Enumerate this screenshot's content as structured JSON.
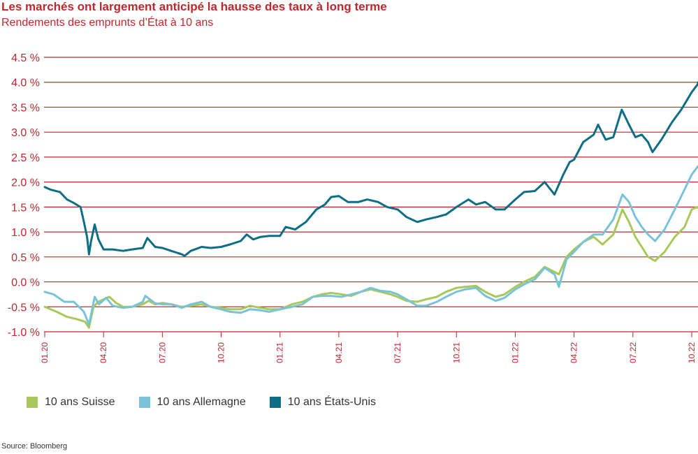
{
  "chart_data": {
    "type": "line",
    "title": "Les marchés ont largement anticipé la hausse des taux à long terme",
    "subtitle": "Rendements des emprunts d’État à 10 ans",
    "xlabel": "",
    "ylabel": "",
    "ylim": [
      -1.0,
      4.5
    ],
    "grid": true,
    "legend_position": "bottom",
    "yticks": [
      4.5,
      4.0,
      3.5,
      3.0,
      2.5,
      2.0,
      1.5,
      1.0,
      0.5,
      0.0,
      -0.5,
      -1.0
    ],
    "ytick_labels": [
      "4.5 %",
      "4.0 %",
      "3.5 %",
      "3.0 %",
      "2.5 %",
      "2.0 %",
      "1.5 %",
      "1.0 %",
      "0.5 %",
      "0.0 %",
      "-0.5 %",
      "-1.0 %"
    ],
    "xticks": [
      "01.20",
      "04.20",
      "07.20",
      "10.20",
      "01.21",
      "04.21",
      "07.21",
      "10.21",
      "01.22",
      "04.22",
      "07.22",
      "10.22"
    ],
    "series": [
      {
        "name": "10 ans Suisse",
        "color": "#a9c85a",
        "points": [
          [
            "2020-01-01",
            -0.5
          ],
          [
            "2020-01-20",
            -0.6
          ],
          [
            "2020-02-05",
            -0.7
          ],
          [
            "2020-02-20",
            -0.75
          ],
          [
            "2020-03-03",
            -0.8
          ],
          [
            "2020-03-09",
            -0.92
          ],
          [
            "2020-03-16",
            -0.5
          ],
          [
            "2020-03-24",
            -0.4
          ],
          [
            "2020-04-01",
            -0.35
          ],
          [
            "2020-04-10",
            -0.3
          ],
          [
            "2020-04-20",
            -0.42
          ],
          [
            "2020-05-01",
            -0.5
          ],
          [
            "2020-05-15",
            -0.5
          ],
          [
            "2020-06-01",
            -0.45
          ],
          [
            "2020-06-10",
            -0.38
          ],
          [
            "2020-06-20",
            -0.45
          ],
          [
            "2020-07-01",
            -0.42
          ],
          [
            "2020-07-15",
            -0.45
          ],
          [
            "2020-08-01",
            -0.5
          ],
          [
            "2020-08-15",
            -0.48
          ],
          [
            "2020-09-01",
            -0.45
          ],
          [
            "2020-09-15",
            -0.5
          ],
          [
            "2020-10-01",
            -0.52
          ],
          [
            "2020-10-15",
            -0.55
          ],
          [
            "2020-11-01",
            -0.55
          ],
          [
            "2020-11-15",
            -0.48
          ],
          [
            "2020-12-01",
            -0.52
          ],
          [
            "2020-12-15",
            -0.55
          ],
          [
            "2021-01-01",
            -0.55
          ],
          [
            "2021-01-20",
            -0.45
          ],
          [
            "2021-02-05",
            -0.4
          ],
          [
            "2021-02-20",
            -0.3
          ],
          [
            "2021-03-05",
            -0.25
          ],
          [
            "2021-03-20",
            -0.22
          ],
          [
            "2021-04-05",
            -0.25
          ],
          [
            "2021-04-20",
            -0.28
          ],
          [
            "2021-05-05",
            -0.2
          ],
          [
            "2021-05-20",
            -0.15
          ],
          [
            "2021-06-05",
            -0.2
          ],
          [
            "2021-06-20",
            -0.25
          ],
          [
            "2021-07-01",
            -0.3
          ],
          [
            "2021-07-15",
            -0.38
          ],
          [
            "2021-08-01",
            -0.4
          ],
          [
            "2021-08-15",
            -0.35
          ],
          [
            "2021-09-01",
            -0.3
          ],
          [
            "2021-09-15",
            -0.2
          ],
          [
            "2021-10-01",
            -0.12
          ],
          [
            "2021-10-15",
            -0.1
          ],
          [
            "2021-11-01",
            -0.08
          ],
          [
            "2021-11-15",
            -0.2
          ],
          [
            "2021-12-01",
            -0.3
          ],
          [
            "2021-12-15",
            -0.25
          ],
          [
            "2022-01-01",
            -0.1
          ],
          [
            "2022-01-15",
            0.0
          ],
          [
            "2022-02-01",
            0.1
          ],
          [
            "2022-02-15",
            0.3
          ],
          [
            "2022-03-01",
            0.2
          ],
          [
            "2022-03-08",
            0.15
          ],
          [
            "2022-03-20",
            0.5
          ],
          [
            "2022-04-01",
            0.65
          ],
          [
            "2022-04-15",
            0.8
          ],
          [
            "2022-05-01",
            0.9
          ],
          [
            "2022-05-15",
            0.75
          ],
          [
            "2022-06-01",
            0.95
          ],
          [
            "2022-06-15",
            1.45
          ],
          [
            "2022-06-25",
            1.2
          ],
          [
            "2022-07-05",
            0.9
          ],
          [
            "2022-07-15",
            0.7
          ],
          [
            "2022-07-25",
            0.5
          ],
          [
            "2022-08-05",
            0.42
          ],
          [
            "2022-08-20",
            0.6
          ],
          [
            "2022-09-05",
            0.9
          ],
          [
            "2022-09-20",
            1.1
          ],
          [
            "2022-10-01",
            1.45
          ],
          [
            "2022-10-10",
            1.5
          ],
          [
            "2022-10-20",
            1.35
          ],
          [
            "2022-10-28",
            1.1
          ],
          [
            "2022-11-02",
            1.15
          ]
        ]
      },
      {
        "name": "10 ans Allemagne",
        "color": "#79c3d8",
        "points": [
          [
            "2020-01-01",
            -0.2
          ],
          [
            "2020-01-15",
            -0.25
          ],
          [
            "2020-02-01",
            -0.4
          ],
          [
            "2020-02-15",
            -0.4
          ],
          [
            "2020-03-01",
            -0.6
          ],
          [
            "2020-03-09",
            -0.86
          ],
          [
            "2020-03-18",
            -0.3
          ],
          [
            "2020-03-25",
            -0.45
          ],
          [
            "2020-04-05",
            -0.32
          ],
          [
            "2020-04-15",
            -0.48
          ],
          [
            "2020-05-01",
            -0.52
          ],
          [
            "2020-05-15",
            -0.5
          ],
          [
            "2020-06-01",
            -0.4
          ],
          [
            "2020-06-05",
            -0.28
          ],
          [
            "2020-06-20",
            -0.43
          ],
          [
            "2020-07-01",
            -0.45
          ],
          [
            "2020-07-15",
            -0.45
          ],
          [
            "2020-08-01",
            -0.52
          ],
          [
            "2020-08-15",
            -0.45
          ],
          [
            "2020-09-01",
            -0.4
          ],
          [
            "2020-09-15",
            -0.5
          ],
          [
            "2020-10-01",
            -0.55
          ],
          [
            "2020-10-15",
            -0.6
          ],
          [
            "2020-11-01",
            -0.62
          ],
          [
            "2020-11-15",
            -0.55
          ],
          [
            "2020-12-01",
            -0.57
          ],
          [
            "2020-12-15",
            -0.6
          ],
          [
            "2021-01-01",
            -0.55
          ],
          [
            "2021-01-20",
            -0.5
          ],
          [
            "2021-02-05",
            -0.45
          ],
          [
            "2021-02-20",
            -0.3
          ],
          [
            "2021-03-05",
            -0.28
          ],
          [
            "2021-03-20",
            -0.28
          ],
          [
            "2021-04-05",
            -0.3
          ],
          [
            "2021-04-20",
            -0.25
          ],
          [
            "2021-05-05",
            -0.2
          ],
          [
            "2021-05-20",
            -0.12
          ],
          [
            "2021-06-05",
            -0.18
          ],
          [
            "2021-06-20",
            -0.2
          ],
          [
            "2021-07-01",
            -0.25
          ],
          [
            "2021-07-15",
            -0.35
          ],
          [
            "2021-08-01",
            -0.48
          ],
          [
            "2021-08-15",
            -0.48
          ],
          [
            "2021-09-01",
            -0.4
          ],
          [
            "2021-09-15",
            -0.3
          ],
          [
            "2021-10-01",
            -0.2
          ],
          [
            "2021-10-15",
            -0.15
          ],
          [
            "2021-11-01",
            -0.12
          ],
          [
            "2021-11-15",
            -0.28
          ],
          [
            "2021-12-01",
            -0.38
          ],
          [
            "2021-12-15",
            -0.32
          ],
          [
            "2022-01-01",
            -0.15
          ],
          [
            "2022-01-15",
            -0.05
          ],
          [
            "2022-02-01",
            0.05
          ],
          [
            "2022-02-15",
            0.28
          ],
          [
            "2022-03-01",
            0.15
          ],
          [
            "2022-03-08",
            -0.1
          ],
          [
            "2022-03-20",
            0.45
          ],
          [
            "2022-04-01",
            0.6
          ],
          [
            "2022-04-15",
            0.8
          ],
          [
            "2022-05-01",
            0.95
          ],
          [
            "2022-05-15",
            0.95
          ],
          [
            "2022-06-01",
            1.25
          ],
          [
            "2022-06-15",
            1.75
          ],
          [
            "2022-06-25",
            1.6
          ],
          [
            "2022-07-05",
            1.3
          ],
          [
            "2022-07-15",
            1.1
          ],
          [
            "2022-07-25",
            0.95
          ],
          [
            "2022-08-05",
            0.82
          ],
          [
            "2022-08-20",
            1.05
          ],
          [
            "2022-09-05",
            1.45
          ],
          [
            "2022-09-20",
            1.85
          ],
          [
            "2022-10-01",
            2.15
          ],
          [
            "2022-10-10",
            2.3
          ],
          [
            "2022-10-20",
            2.45
          ],
          [
            "2022-10-28",
            2.1
          ],
          [
            "2022-11-02",
            2.2
          ]
        ]
      },
      {
        "name": "10 ans États-Unis",
        "color": "#0a6e84",
        "points": [
          [
            "2020-01-01",
            1.9
          ],
          [
            "2020-01-10",
            1.85
          ],
          [
            "2020-01-25",
            1.8
          ],
          [
            "2020-02-05",
            1.65
          ],
          [
            "2020-02-15",
            1.58
          ],
          [
            "2020-02-25",
            1.5
          ],
          [
            "2020-03-01",
            1.2
          ],
          [
            "2020-03-06",
            0.9
          ],
          [
            "2020-03-09",
            0.55
          ],
          [
            "2020-03-12",
            0.8
          ],
          [
            "2020-03-18",
            1.15
          ],
          [
            "2020-03-24",
            0.85
          ],
          [
            "2020-04-01",
            0.65
          ],
          [
            "2020-04-15",
            0.65
          ],
          [
            "2020-05-01",
            0.62
          ],
          [
            "2020-05-15",
            0.65
          ],
          [
            "2020-06-01",
            0.68
          ],
          [
            "2020-06-08",
            0.88
          ],
          [
            "2020-06-20",
            0.7
          ],
          [
            "2020-07-01",
            0.68
          ],
          [
            "2020-07-15",
            0.62
          ],
          [
            "2020-08-01",
            0.55
          ],
          [
            "2020-08-05",
            0.52
          ],
          [
            "2020-08-15",
            0.62
          ],
          [
            "2020-09-01",
            0.7
          ],
          [
            "2020-09-15",
            0.68
          ],
          [
            "2020-10-01",
            0.7
          ],
          [
            "2020-10-15",
            0.75
          ],
          [
            "2020-11-01",
            0.82
          ],
          [
            "2020-11-10",
            0.95
          ],
          [
            "2020-11-20",
            0.85
          ],
          [
            "2020-12-01",
            0.9
          ],
          [
            "2020-12-15",
            0.92
          ],
          [
            "2021-01-01",
            0.92
          ],
          [
            "2021-01-10",
            1.1
          ],
          [
            "2021-01-25",
            1.05
          ],
          [
            "2021-02-10",
            1.2
          ],
          [
            "2021-02-25",
            1.45
          ],
          [
            "2021-03-10",
            1.55
          ],
          [
            "2021-03-20",
            1.7
          ],
          [
            "2021-04-01",
            1.72
          ],
          [
            "2021-04-15",
            1.6
          ],
          [
            "2021-05-01",
            1.6
          ],
          [
            "2021-05-15",
            1.65
          ],
          [
            "2021-06-01",
            1.6
          ],
          [
            "2021-06-15",
            1.5
          ],
          [
            "2021-07-01",
            1.45
          ],
          [
            "2021-07-15",
            1.3
          ],
          [
            "2021-08-01",
            1.2
          ],
          [
            "2021-08-15",
            1.25
          ],
          [
            "2021-09-01",
            1.3
          ],
          [
            "2021-09-15",
            1.35
          ],
          [
            "2021-10-01",
            1.5
          ],
          [
            "2021-10-20",
            1.65
          ],
          [
            "2021-11-01",
            1.55
          ],
          [
            "2021-11-15",
            1.6
          ],
          [
            "2021-12-01",
            1.45
          ],
          [
            "2021-12-15",
            1.45
          ],
          [
            "2022-01-01",
            1.65
          ],
          [
            "2022-01-15",
            1.8
          ],
          [
            "2022-02-01",
            1.82
          ],
          [
            "2022-02-15",
            2.0
          ],
          [
            "2022-03-01",
            1.75
          ],
          [
            "2022-03-15",
            2.15
          ],
          [
            "2022-03-25",
            2.4
          ],
          [
            "2022-04-01",
            2.45
          ],
          [
            "2022-04-15",
            2.8
          ],
          [
            "2022-05-01",
            2.95
          ],
          [
            "2022-05-08",
            3.15
          ],
          [
            "2022-05-20",
            2.85
          ],
          [
            "2022-06-01",
            2.9
          ],
          [
            "2022-06-14",
            3.45
          ],
          [
            "2022-06-25",
            3.15
          ],
          [
            "2022-07-05",
            2.9
          ],
          [
            "2022-07-15",
            2.95
          ],
          [
            "2022-07-25",
            2.8
          ],
          [
            "2022-08-01",
            2.6
          ],
          [
            "2022-08-15",
            2.85
          ],
          [
            "2022-09-01",
            3.2
          ],
          [
            "2022-09-15",
            3.45
          ],
          [
            "2022-10-01",
            3.8
          ],
          [
            "2022-10-10",
            3.95
          ],
          [
            "2022-10-20",
            4.25
          ],
          [
            "2022-10-27",
            4.0
          ],
          [
            "2022-11-02",
            4.2
          ]
        ]
      }
    ],
    "source": "Source: Bloomberg"
  }
}
